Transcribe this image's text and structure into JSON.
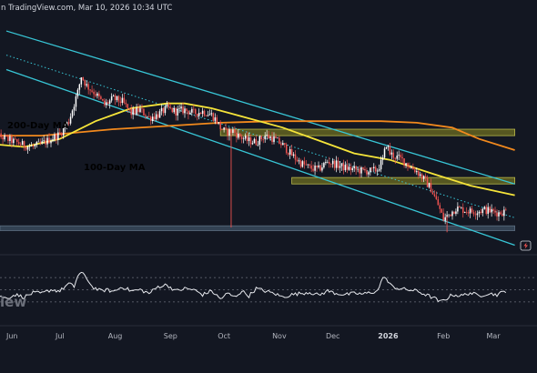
{
  "header": {
    "source_text": "n TradingView.com, Mar 10, 2026 10:34 UTC"
  },
  "watermark": "iew",
  "colors": {
    "background": "#131722",
    "up_candle": "#ffffff",
    "down_candle": "#ef5350",
    "ma_200": "#f2891d",
    "ma_100": "#f5e43a",
    "channel": "#38c6d6",
    "zone_fill": "#6e6e22",
    "zone_border": "#b8b84a",
    "support_fill": "#3a4a5c",
    "rsi_line": "#e7e9ee",
    "rsi_band": "#6b6f7a"
  },
  "chart_data": [
    {
      "type": "candlestick",
      "title": "",
      "annotations": [
        {
          "text": "200-Day MA",
          "color": "#f2891d"
        },
        {
          "text": "100-Day MA",
          "color": "#f5e43a"
        }
      ],
      "x_tick_labels": [
        "Jun",
        "Jul",
        "Aug",
        "Sep",
        "Oct",
        "Nov",
        "Dec",
        "2026",
        "Feb",
        "Mar"
      ],
      "x_tick_days": [
        0,
        30,
        61,
        92,
        122,
        153,
        183,
        214,
        245,
        273
      ],
      "price_axis_visible": false,
      "close_series_approx": [
        [
          -10,
          60
        ],
        [
          -5,
          57
        ],
        [
          0,
          55
        ],
        [
          5,
          53
        ],
        [
          10,
          51
        ],
        [
          15,
          50
        ],
        [
          20,
          52
        ],
        [
          25,
          55
        ],
        [
          30,
          58
        ],
        [
          35,
          66
        ],
        [
          40,
          84
        ],
        [
          42,
          94
        ],
        [
          45,
          88
        ],
        [
          50,
          83
        ],
        [
          55,
          76
        ],
        [
          60,
          80
        ],
        [
          65,
          78
        ],
        [
          70,
          71
        ],
        [
          75,
          73
        ],
        [
          80,
          68
        ],
        [
          85,
          70
        ],
        [
          90,
          74
        ],
        [
          95,
          72
        ],
        [
          100,
          73
        ],
        [
          105,
          71
        ],
        [
          110,
          72
        ],
        [
          115,
          70
        ],
        [
          118,
          66
        ],
        [
          120,
          62
        ],
        [
          123,
          59
        ],
        [
          127,
          60
        ],
        [
          130,
          57
        ],
        [
          135,
          54
        ],
        [
          140,
          53
        ],
        [
          145,
          57
        ],
        [
          150,
          55
        ],
        [
          155,
          51
        ],
        [
          160,
          45
        ],
        [
          165,
          40
        ],
        [
          170,
          37
        ],
        [
          175,
          36
        ],
        [
          180,
          41
        ],
        [
          185,
          39
        ],
        [
          190,
          37
        ],
        [
          195,
          36
        ],
        [
          200,
          35
        ],
        [
          205,
          35
        ],
        [
          208,
          36
        ],
        [
          211,
          42
        ],
        [
          213,
          52
        ],
        [
          215,
          46
        ],
        [
          218,
          44
        ],
        [
          222,
          42
        ],
        [
          226,
          38
        ],
        [
          230,
          35
        ],
        [
          234,
          30
        ],
        [
          238,
          24
        ],
        [
          242,
          14
        ],
        [
          245,
          5
        ],
        [
          248,
          8
        ],
        [
          252,
          12
        ],
        [
          256,
          11
        ],
        [
          260,
          10
        ],
        [
          264,
          10
        ],
        [
          268,
          11
        ],
        [
          272,
          10
        ],
        [
          276,
          9
        ],
        [
          280,
          10
        ]
      ],
      "spikes": [
        {
          "day": 126,
          "low": 0
        },
        {
          "day": 247,
          "low": -3
        }
      ],
      "ma_100": [
        [
          -10,
          52
        ],
        [
          10,
          50
        ],
        [
          30,
          55
        ],
        [
          50,
          66
        ],
        [
          70,
          74
        ],
        [
          90,
          77
        ],
        [
          100,
          77
        ],
        [
          115,
          74
        ],
        [
          135,
          68
        ],
        [
          155,
          62
        ],
        [
          175,
          54
        ],
        [
          195,
          46
        ],
        [
          215,
          42
        ],
        [
          240,
          33
        ],
        [
          260,
          26
        ],
        [
          285,
          20
        ]
      ],
      "ma_200": [
        [
          -10,
          57
        ],
        [
          20,
          57
        ],
        [
          60,
          61
        ],
        [
          90,
          63
        ],
        [
          120,
          65
        ],
        [
          150,
          66
        ],
        [
          180,
          66
        ],
        [
          210,
          66
        ],
        [
          230,
          65
        ],
        [
          250,
          62
        ],
        [
          265,
          55
        ],
        [
          285,
          48
        ]
      ],
      "zones": [
        {
          "name": "upper-resistance",
          "low": 57,
          "high": 61,
          "from_day": 120,
          "to_day": 285
        },
        {
          "name": "lower-resistance",
          "low": 27,
          "high": 31,
          "from_day": 160,
          "to_day": 285
        },
        {
          "name": "support",
          "low": -2,
          "high": 1,
          "from_day": -10,
          "to_day": 285
        }
      ],
      "channel_lines": [
        {
          "name": "channel-upper",
          "from": [
            0,
            122
          ],
          "to": [
            285,
            27
          ]
        },
        {
          "name": "channel-lower",
          "from": [
            0,
            98
          ],
          "to": [
            285,
            -11
          ]
        },
        {
          "name": "channel-top-dotted",
          "from": [
            0,
            107
          ],
          "to": [
            285,
            6
          ],
          "dotted": true
        }
      ]
    },
    {
      "type": "line",
      "title": "",
      "indicator": "RSI",
      "ylim": [
        0,
        100
      ],
      "bands": [
        30,
        50,
        70
      ],
      "values_approx": [
        [
          -10,
          48
        ],
        [
          -5,
          40
        ],
        [
          0,
          36
        ],
        [
          5,
          42
        ],
        [
          10,
          38
        ],
        [
          15,
          45
        ],
        [
          20,
          44
        ],
        [
          25,
          50
        ],
        [
          30,
          48
        ],
        [
          35,
          60
        ],
        [
          38,
          55
        ],
        [
          40,
          73
        ],
        [
          42,
          78
        ],
        [
          44,
          72
        ],
        [
          46,
          65
        ],
        [
          48,
          55
        ],
        [
          50,
          52
        ],
        [
          53,
          48
        ],
        [
          56,
          50
        ],
        [
          60,
          47
        ],
        [
          65,
          55
        ],
        [
          70,
          48
        ],
        [
          75,
          50
        ],
        [
          80,
          44
        ],
        [
          85,
          55
        ],
        [
          90,
          58
        ],
        [
          95,
          48
        ],
        [
          100,
          52
        ],
        [
          105,
          50
        ],
        [
          110,
          42
        ],
        [
          115,
          48
        ],
        [
          120,
          35
        ],
        [
          124,
          44
        ],
        [
          128,
          38
        ],
        [
          132,
          48
        ],
        [
          136,
          40
        ],
        [
          140,
          52
        ],
        [
          145,
          48
        ],
        [
          150,
          44
        ],
        [
          155,
          38
        ],
        [
          160,
          42
        ],
        [
          165,
          44
        ],
        [
          170,
          46
        ],
        [
          175,
          41
        ],
        [
          180,
          48
        ],
        [
          185,
          44
        ],
        [
          190,
          42
        ],
        [
          195,
          44
        ],
        [
          200,
          43
        ],
        [
          205,
          46
        ],
        [
          208,
          48
        ],
        [
          210,
          62
        ],
        [
          212,
          73
        ],
        [
          214,
          62
        ],
        [
          216,
          56
        ],
        [
          220,
          52
        ],
        [
          225,
          50
        ],
        [
          230,
          48
        ],
        [
          235,
          42
        ],
        [
          240,
          36
        ],
        [
          243,
          30
        ],
        [
          246,
          34
        ],
        [
          250,
          42
        ],
        [
          255,
          40
        ],
        [
          260,
          45
        ],
        [
          265,
          40
        ],
        [
          270,
          44
        ],
        [
          275,
          42
        ],
        [
          280,
          48
        ]
      ]
    }
  ]
}
